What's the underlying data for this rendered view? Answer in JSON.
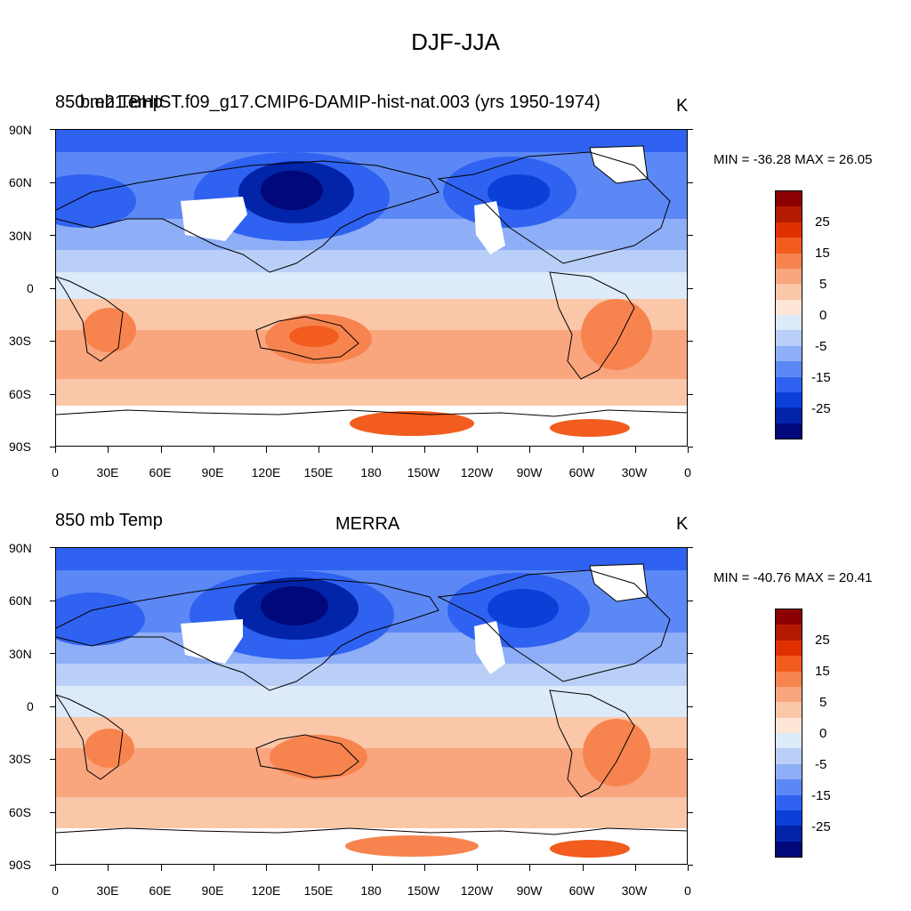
{
  "title": "DJF-JJA",
  "panels": [
    {
      "variable": "850 mb Temp",
      "case": "b.e21.BHIST.f09_g17.CMIP6-DAMIP-hist-nat.003 (yrs 1950-1974)",
      "units": "K",
      "minmax": "MIN = -36.28 MAX =  26.05"
    },
    {
      "variable": "850 mb Temp",
      "case": "MERRA",
      "units": "K",
      "minmax": "MIN = -40.76 MAX =  20.41"
    }
  ],
  "lat_ticks": [
    "90N",
    "60N",
    "30N",
    "0",
    "30S",
    "60S",
    "90S"
  ],
  "lon_ticks": [
    "0",
    "30E",
    "60E",
    "90E",
    "120E",
    "150E",
    "180",
    "150W",
    "120W",
    "90W",
    "60W",
    "30W",
    "0"
  ],
  "colorbar": {
    "labels": [
      "25",
      "15",
      "5",
      "0",
      "-5",
      "-15",
      "-25"
    ],
    "colors": [
      "#8b0000",
      "#b31b00",
      "#e03000",
      "#f25c1e",
      "#f7844f",
      "#f9a57e",
      "#fbc7a9",
      "#fde6d5",
      "#dceaf9",
      "#b9cff7",
      "#8eaef7",
      "#5b88f5",
      "#2f62f0",
      "#0a3fd8",
      "#0224a8",
      "#00087a"
    ]
  },
  "chart_data": [
    {
      "type": "heatmap",
      "title": "850 mb Temp — b.e21.BHIST.f09_g17.CMIP6-DAMIP-hist-nat.003 (yrs 1950-1974)",
      "units": "K",
      "min": -36.28,
      "max": 26.05,
      "xlim": [
        "0",
        "0"
      ],
      "ylim": [
        "90S",
        "90N"
      ]
    },
    {
      "type": "heatmap",
      "title": "850 mb Temp — MERRA",
      "units": "K",
      "min": -40.76,
      "max": 20.41,
      "xlim": [
        "0",
        "0"
      ],
      "ylim": [
        "90S",
        "90N"
      ]
    }
  ]
}
